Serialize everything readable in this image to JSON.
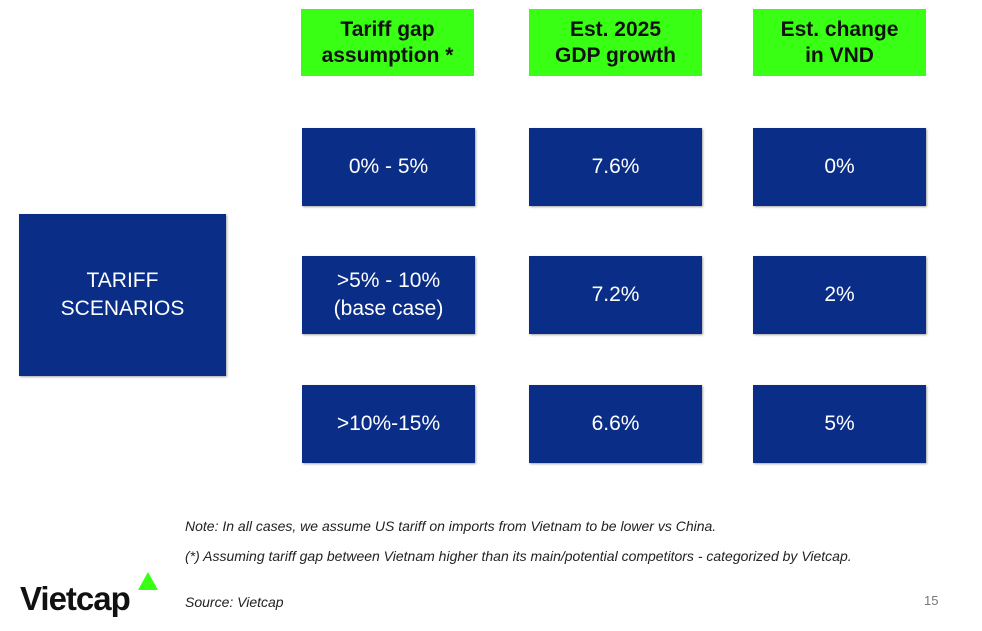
{
  "headers": [
    "Tariff gap\nassumption *",
    "Est. 2025\nGDP growth",
    "Est. change\nin VND"
  ],
  "row_label": "TARIFF\nSCENARIOS",
  "rows": [
    [
      "0% - 5%",
      "7.6%",
      "0%"
    ],
    [
      ">5% - 10%\n(base case)",
      "7.2%",
      "2%"
    ],
    [
      ">10%-15%",
      "6.6%",
      "5%"
    ]
  ],
  "notes": {
    "note": "Note: In all cases, we assume US tariff on imports from Vietnam to be lower vs China.",
    "footnote": "(*) Assuming tariff gap between Vietnam higher than its main/potential competitors - categorized by Vietcap.",
    "source": "Source: Vietcap"
  },
  "logo_text": "Vietcap",
  "page_number": "15",
  "colors": {
    "header_bg": "#39ff14",
    "cell_bg": "#0a2d87",
    "accent": "#39ff14"
  }
}
